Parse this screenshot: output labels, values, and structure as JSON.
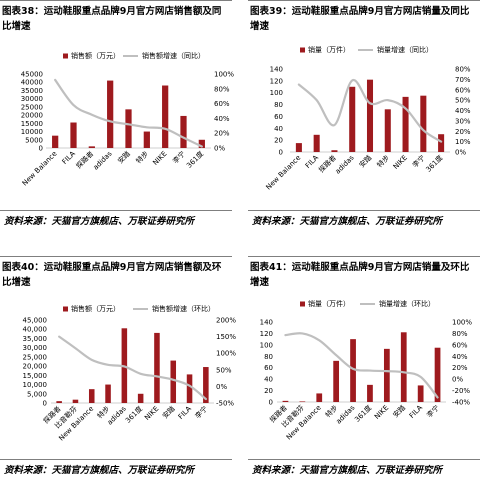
{
  "chart_data": [
    {
      "type": "bar",
      "title": "图表38：运动鞋服重点品牌9月官方网店销售额及同比增速",
      "source": "资料来源：天猫官方旗舰店、万联证券研究所",
      "categories": [
        "New Balance",
        "FILA",
        "探路者",
        "adidas",
        "安踏",
        "特步",
        "NIKE",
        "李宁",
        "361度"
      ],
      "series": [
        {
          "name": "销售额（万元）",
          "type": "bar",
          "axis": "left",
          "values": [
            7500,
            15500,
            1000,
            41000,
            23500,
            10000,
            38000,
            19500,
            5000
          ]
        },
        {
          "name": "销售额增速（同比）",
          "type": "line",
          "axis": "right",
          "values": [
            92,
            58,
            45,
            36,
            32,
            28,
            26,
            14,
            2
          ]
        }
      ],
      "left_axis": {
        "ylim": [
          0,
          45000
        ],
        "ticks": [
          "0",
          "5000",
          "10000",
          "15000",
          "20000",
          "25000",
          "30000",
          "35000",
          "40000",
          "45000"
        ]
      },
      "right_axis": {
        "ylim": [
          0,
          100
        ],
        "ticks": [
          "0%",
          "20%",
          "40%",
          "60%",
          "80%",
          "100%"
        ]
      },
      "legend": "top",
      "grid": false,
      "colors": {
        "bar": "#9e1a1e",
        "line": "#bfbfbf",
        "axis": "#bfbfbf"
      }
    },
    {
      "type": "bar",
      "title": "图表39：运动鞋服重点品牌9月官方网店销量及同比增速",
      "source": "资料来源：天猫官方旗舰店、万联证券研究所",
      "categories": [
        "New Balance",
        "FILA",
        "探路者",
        "adidas",
        "安踏",
        "特步",
        "NIKE",
        "李宁",
        "361度"
      ],
      "series": [
        {
          "name": "销量（万件）",
          "type": "bar",
          "axis": "left",
          "values": [
            15,
            29,
            3,
            110,
            122,
            72,
            93,
            95,
            30
          ]
        },
        {
          "name": "销量增速（同比）",
          "type": "line",
          "axis": "right",
          "values": [
            65,
            50,
            26,
            69,
            47,
            50,
            42,
            21,
            10
          ]
        }
      ],
      "left_axis": {
        "ylim": [
          0,
          140
        ],
        "ticks": [
          "0",
          "20",
          "40",
          "60",
          "80",
          "100",
          "120",
          "140"
        ]
      },
      "right_axis": {
        "ylim": [
          0,
          80
        ],
        "ticks": [
          "0%",
          "10%",
          "20%",
          "30%",
          "40%",
          "50%",
          "60%",
          "70%",
          "80%"
        ]
      },
      "legend": "top",
      "grid": false,
      "colors": {
        "bar": "#9e1a1e",
        "line": "#bfbfbf",
        "axis": "#bfbfbf"
      }
    },
    {
      "type": "bar",
      "title": "图表40：运动鞋服重点品牌9月官方网店销售额及环比增速",
      "source": "资料来源：天猫官方旗舰店、万联证券研究所",
      "categories": [
        "探路者",
        "比音勒芬",
        "New Balance",
        "特步",
        "adidas",
        "361度",
        "NIKE",
        "安踏",
        "FILA",
        "李宁"
      ],
      "series": [
        {
          "name": "销售额（万元）",
          "type": "bar",
          "axis": "left",
          "values": [
            1000,
            1800,
            7500,
            10000,
            40500,
            5000,
            38000,
            23000,
            15500,
            19500
          ]
        },
        {
          "name": "销售额增速（环比）",
          "type": "line",
          "axis": "right",
          "values": [
            150,
            115,
            80,
            65,
            60,
            38,
            30,
            20,
            2,
            -38
          ]
        }
      ],
      "left_axis": {
        "ylim": [
          0,
          45000
        ],
        "ticks": [
          "0",
          "5,000",
          "10,000",
          "15,000",
          "20,000",
          "25,000",
          "30,000",
          "35,000",
          "40,000",
          "45,000"
        ]
      },
      "right_axis": {
        "ylim": [
          -50,
          200
        ],
        "ticks": [
          "-50%",
          "0%",
          "50%",
          "100%",
          "150%",
          "200%"
        ]
      },
      "legend": "top",
      "grid": false,
      "colors": {
        "bar": "#9e1a1e",
        "line": "#bfbfbf",
        "axis": "#bfbfbf"
      }
    },
    {
      "type": "bar",
      "title": "图表41：运动鞋服重点品牌9月官方网店销量及环比增速",
      "source": "资料来源：天猫官方旗舰店、万联证券研究所",
      "categories": [
        "探路者",
        "比音勒芬",
        "New Balance",
        "特步",
        "adidas",
        "361度",
        "NIKE",
        "安踏",
        "FILA",
        "李宁"
      ],
      "series": [
        {
          "name": "销量（万件）",
          "type": "bar",
          "axis": "left",
          "values": [
            2,
            1,
            15,
            72,
            110,
            30,
            93,
            122,
            29,
            95
          ]
        },
        {
          "name": "销量增速（环比）",
          "type": "line",
          "axis": "right",
          "values": [
            77,
            80,
            68,
            42,
            18,
            15,
            14,
            12,
            4,
            -32
          ]
        }
      ],
      "left_axis": {
        "ylim": [
          0,
          140
        ],
        "ticks": [
          "0",
          "20",
          "40",
          "60",
          "80",
          "100",
          "120",
          "140"
        ]
      },
      "right_axis": {
        "ylim": [
          -40,
          100
        ],
        "ticks": [
          "-40%",
          "-20%",
          "0%",
          "20%",
          "40%",
          "60%",
          "80%",
          "100%"
        ]
      },
      "legend": "top",
      "grid": false,
      "colors": {
        "bar": "#9e1a1e",
        "line": "#bfbfbf",
        "axis": "#bfbfbf"
      }
    }
  ]
}
